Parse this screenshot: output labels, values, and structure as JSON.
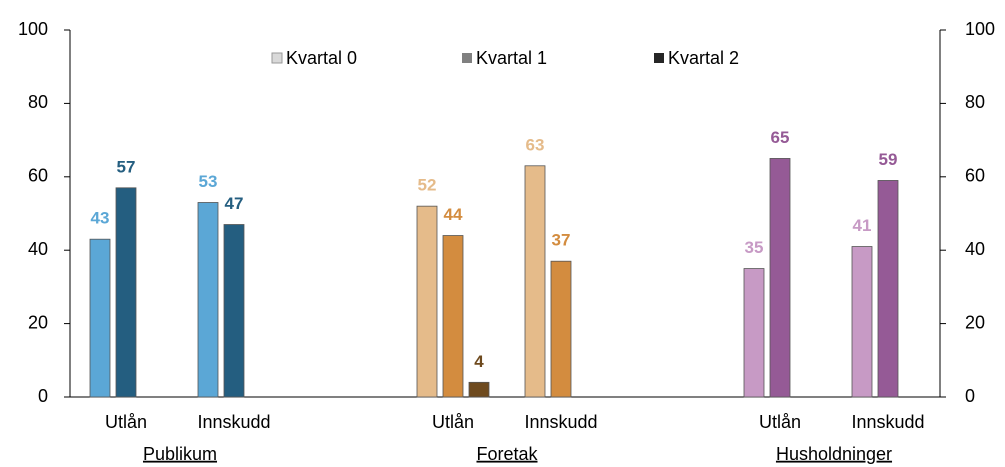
{
  "chart_data": {
    "type": "bar",
    "categories": [
      "Utlån",
      "Innskudd",
      "Utlån",
      "Innskudd",
      "Utlån",
      "Innskudd"
    ],
    "groups": [
      "Publikum",
      "Foretak",
      "Husholdninger"
    ],
    "series": [
      {
        "name": "Kvartal 0",
        "color": "#d9d9d9",
        "values": [
          43,
          53,
          52,
          63,
          35,
          41
        ]
      },
      {
        "name": "Kvartal 1",
        "color": "#808080",
        "values": [
          57,
          47,
          44,
          37,
          65,
          59
        ]
      },
      {
        "name": "Kvartal 2",
        "color": "#262626",
        "values": [
          null,
          null,
          4,
          null,
          null,
          null
        ]
      }
    ],
    "group_colors": [
      [
        "#5ba7d6",
        "#245e80",
        "#1a3e55"
      ],
      [
        "#e5bb8a",
        "#d38c3f",
        "#6e4a1e"
      ],
      [
        "#c79ac5",
        "#955a96",
        "#5e3560"
      ]
    ],
    "ylim": [
      0,
      100
    ],
    "yticks": [
      0,
      20,
      40,
      60,
      80,
      100
    ],
    "y2lim": [
      0,
      100
    ],
    "y2ticks": [
      0,
      20,
      40,
      60,
      80,
      100
    ],
    "legend": "top"
  }
}
